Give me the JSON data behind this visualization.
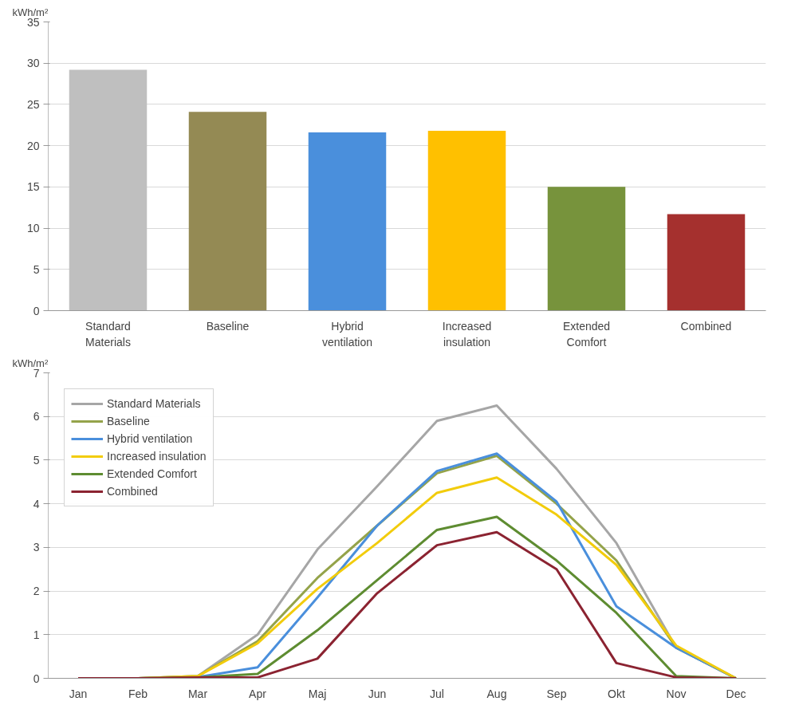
{
  "chart_data": [
    {
      "type": "bar",
      "ylabel": "kWh/m²",
      "categories": [
        "Standard Materials",
        "Baseline",
        "Hybrid ventilation",
        "Increased insulation",
        "Extended Comfort",
        "Combined"
      ],
      "values": [
        29.2,
        24.1,
        21.6,
        21.8,
        15.0,
        11.7
      ],
      "colors": [
        "#bfbfbf",
        "#948a54",
        "#4a8fdc",
        "#ffc000",
        "#77933c",
        "#a5302e"
      ],
      "ylim": [
        0,
        35
      ],
      "yticks": [
        0,
        5,
        10,
        15,
        20,
        25,
        30,
        35
      ],
      "grid": "y"
    },
    {
      "type": "line",
      "ylabel": "kWh/m²",
      "categories": [
        "Jan",
        "Feb",
        "Mar",
        "Apr",
        "Maj",
        "Jun",
        "Jul",
        "Aug",
        "Sep",
        "Okt",
        "Nov",
        "Dec"
      ],
      "series": [
        {
          "name": "Standard Materials",
          "color": "#a6a6a6",
          "values": [
            0,
            0,
            0.05,
            1.0,
            2.95,
            4.4,
            5.9,
            6.25,
            4.8,
            3.1,
            0.7,
            0
          ]
        },
        {
          "name": "Baseline",
          "color": "#94a34a",
          "values": [
            0,
            0,
            0.05,
            0.85,
            2.3,
            3.5,
            4.7,
            5.1,
            4.0,
            2.7,
            0.7,
            0
          ]
        },
        {
          "name": "Hybrid ventilation",
          "color": "#4a8fdc",
          "values": [
            0,
            0,
            0.03,
            0.25,
            1.85,
            3.5,
            4.75,
            5.15,
            4.05,
            1.65,
            0.7,
            0
          ]
        },
        {
          "name": "Increased insulation",
          "color": "#f2cc0c",
          "values": [
            0,
            0,
            0.05,
            0.8,
            2.05,
            3.1,
            4.25,
            4.6,
            3.75,
            2.6,
            0.75,
            0
          ]
        },
        {
          "name": "Extended Comfort",
          "color": "#5e8c31",
          "values": [
            0,
            0,
            0.02,
            0.1,
            1.1,
            2.25,
            3.4,
            3.7,
            2.7,
            1.5,
            0.05,
            0
          ]
        },
        {
          "name": "Combined",
          "color": "#8b2331",
          "values": [
            0,
            0,
            0.02,
            0.02,
            0.45,
            1.95,
            3.05,
            3.35,
            2.5,
            0.35,
            0.02,
            0
          ]
        }
      ],
      "ylim": [
        0,
        7
      ],
      "yticks": [
        0,
        1,
        2,
        3,
        4,
        5,
        6,
        7
      ],
      "grid": "y",
      "legend": "top left",
      "marker": "none",
      "line_style": "solid"
    }
  ]
}
